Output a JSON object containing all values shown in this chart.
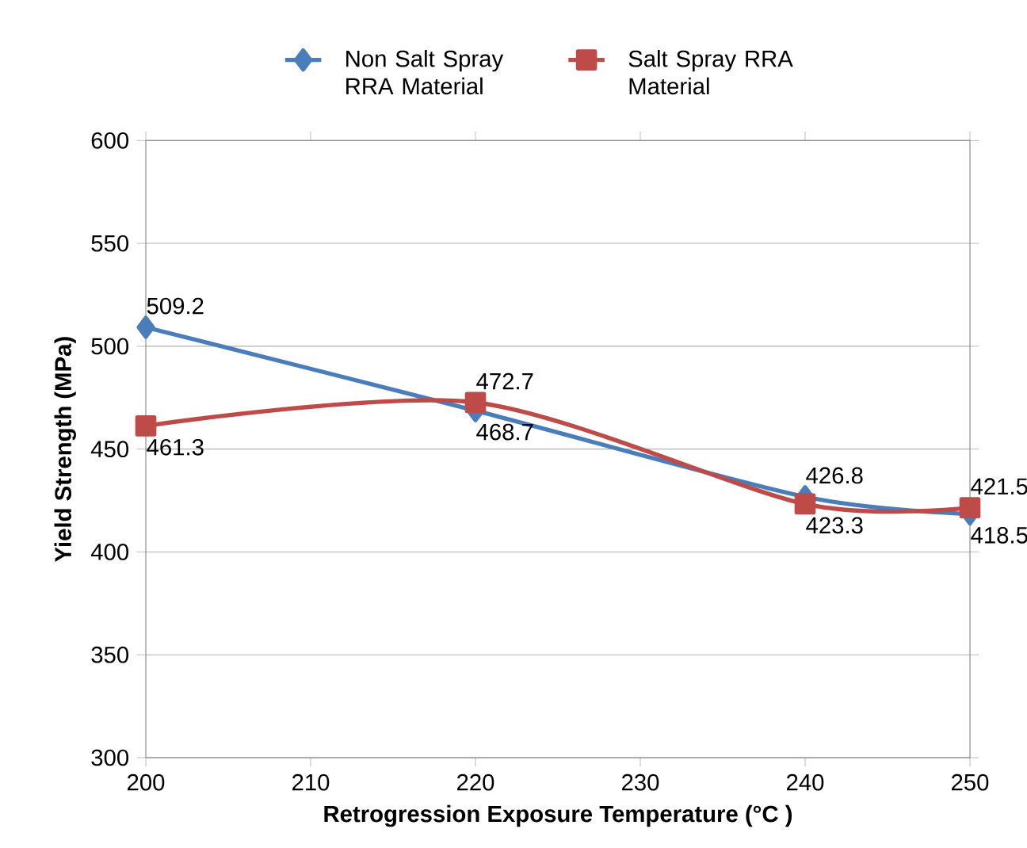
{
  "chart_data": {
    "type": "line",
    "xlabel": "Retrogression Exposure Temperature (°C )",
    "ylabel": "Yield Strength (MPa)",
    "x": [
      200,
      220,
      240,
      250
    ],
    "series": [
      {
        "name": "Non Salt Spray RRA Material",
        "color": "#4a7ebb",
        "marker": "diamond",
        "values": [
          509.2,
          468.7,
          426.8,
          418.5
        ]
      },
      {
        "name": "Salt Spray RRA Material",
        "color": "#be4b48",
        "marker": "square",
        "values": [
          461.3,
          472.7,
          423.3,
          421.5
        ]
      }
    ],
    "xlim": [
      200,
      250
    ],
    "xticks": [
      200,
      210,
      220,
      230,
      240,
      250
    ],
    "ylim": [
      300,
      600
    ],
    "yticks": [
      300,
      350,
      400,
      450,
      500,
      550,
      600
    ],
    "grid": "y",
    "legend": "top",
    "data_labels": true
  }
}
